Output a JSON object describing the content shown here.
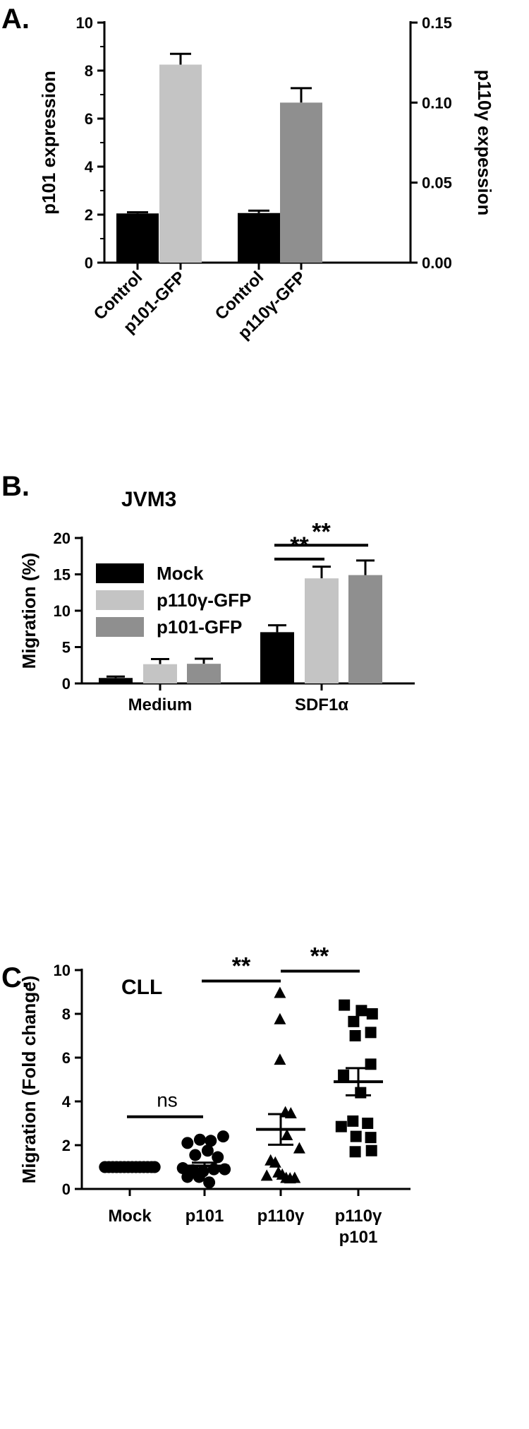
{
  "chart_data": [
    {
      "panel": "A.",
      "type": "bar",
      "categories": [
        "Control",
        "p101-GFP",
        "Control",
        "p110γ-GFP"
      ],
      "values": [
        2.05,
        8.25,
        0.031,
        0.1
      ],
      "errors": [
        0.05,
        0.45,
        0.0015,
        0.009
      ],
      "axis": [
        "left",
        "left",
        "right",
        "right"
      ],
      "colors": [
        "#000000",
        "#c4c4c4",
        "#000000",
        "#8f8f8f"
      ],
      "ylabel": "p101 expression",
      "y2label": "p110γ expession",
      "ylim": [
        0,
        10
      ],
      "y2lim": [
        0,
        0.15
      ],
      "yticks": [
        "0",
        "2",
        "4",
        "6",
        "8",
        "10"
      ],
      "y2ticks": [
        "0.00",
        "0.05",
        "0.10",
        "0.15"
      ]
    },
    {
      "panel": "B.",
      "type": "bar",
      "title": "JVM3",
      "categories": [
        "Medium",
        "SDF1α"
      ],
      "series": [
        {
          "name": "Mock",
          "values": [
            0.75,
            7.05
          ],
          "errors": [
            0.2,
            0.95
          ],
          "color": "#000000"
        },
        {
          "name": "p110γ-GFP",
          "values": [
            2.65,
            14.45
          ],
          "errors": [
            0.7,
            1.6
          ],
          "color": "#c4c4c4"
        },
        {
          "name": "p101-GFP",
          "values": [
            2.7,
            14.9
          ],
          "errors": [
            0.7,
            2.0
          ],
          "color": "#8f8f8f"
        }
      ],
      "ylabel": "Migration (%)",
      "ylim": [
        0,
        20
      ],
      "yticks": [
        "0",
        "5",
        "10",
        "15",
        "20"
      ],
      "annotations": [
        {
          "text": "**",
          "group": "SDF1α",
          "from": "Mock",
          "to": "p110γ-GFP",
          "y": 17.1
        },
        {
          "text": "**",
          "group": "SDF1α",
          "from": "Mock",
          "to": "p101-GFP",
          "y": 19.0
        }
      ]
    },
    {
      "panel": "C.",
      "type": "scatter",
      "title": "CLL",
      "categories": [
        "Mock",
        "p101",
        "p110γ",
        "p110γ\np101"
      ],
      "category_lines": [
        [
          "Mock"
        ],
        [
          "p101"
        ],
        [
          "p110γ"
        ],
        [
          "p110γ",
          "p101"
        ]
      ],
      "ylabel": "Migration (Fold change)",
      "ylim": [
        0,
        10
      ],
      "yticks": [
        "0",
        "2",
        "4",
        "6",
        "8",
        "10"
      ],
      "series": [
        {
          "group": "Mock",
          "marker": "circle",
          "mean": 1.0,
          "sem": 0.0,
          "points": [
            [
              -0.32,
              1
            ],
            [
              -0.27,
              1
            ],
            [
              -0.22,
              1
            ],
            [
              -0.17,
              1
            ],
            [
              -0.12,
              1
            ],
            [
              -0.07,
              1
            ],
            [
              -0.02,
              1
            ],
            [
              0.03,
              1
            ],
            [
              0.08,
              1
            ],
            [
              0.13,
              1
            ],
            [
              0.18,
              1
            ],
            [
              0.23,
              1
            ],
            [
              0.28,
              1
            ],
            [
              0.32,
              1
            ]
          ]
        },
        {
          "group": "p101",
          "marker": "circle",
          "mean": 1.05,
          "sem": 0.15,
          "points": [
            [
              -0.22,
              2.1
            ],
            [
              -0.06,
              2.25
            ],
            [
              0.08,
              2.2
            ],
            [
              0.24,
              2.4
            ],
            [
              -0.12,
              1.55
            ],
            [
              0.04,
              1.75
            ],
            [
              0.17,
              1.45
            ],
            [
              -0.28,
              0.95
            ],
            [
              -0.15,
              0.85
            ],
            [
              -0.02,
              0.8
            ],
            [
              0.12,
              0.9
            ],
            [
              0.26,
              0.9
            ],
            [
              -0.22,
              0.55
            ],
            [
              -0.07,
              0.55
            ],
            [
              0.06,
              0.3
            ]
          ]
        },
        {
          "group": "p110γ",
          "marker": "triangle",
          "mean": 2.72,
          "sem": 0.7,
          "points": [
            [
              -0.01,
              8.95
            ],
            [
              -0.01,
              7.75
            ],
            [
              -0.01,
              5.9
            ],
            [
              0.06,
              3.5
            ],
            [
              0.13,
              3.45
            ],
            [
              0.08,
              2.45
            ],
            [
              0.24,
              1.85
            ],
            [
              -0.13,
              1.3
            ],
            [
              -0.07,
              1.2
            ],
            [
              -0.03,
              0.75
            ],
            [
              0.02,
              0.65
            ],
            [
              0.07,
              0.5
            ],
            [
              0.12,
              0.48
            ],
            [
              0.18,
              0.5
            ],
            [
              -0.18,
              0.6
            ]
          ]
        },
        {
          "group": "p110γ\np101",
          "marker": "square",
          "mean": 4.9,
          "sem": 0.62,
          "points": [
            [
              -0.18,
              8.4
            ],
            [
              0.04,
              8.15
            ],
            [
              0.18,
              8.0
            ],
            [
              -0.06,
              7.65
            ],
            [
              0.16,
              7.15
            ],
            [
              -0.04,
              7.0
            ],
            [
              0.16,
              5.7
            ],
            [
              -0.19,
              5.2
            ],
            [
              0.03,
              4.4
            ],
            [
              -0.07,
              3.1
            ],
            [
              0.12,
              3.0
            ],
            [
              -0.22,
              2.85
            ],
            [
              -0.03,
              2.4
            ],
            [
              0.16,
              2.35
            ],
            [
              -0.04,
              1.7
            ],
            [
              0.17,
              1.75
            ]
          ]
        }
      ],
      "annotations": [
        {
          "text": "ns",
          "from": "Mock",
          "to": "p101",
          "y": 3.3
        },
        {
          "text": "**",
          "from": "p101",
          "to": "p110γ",
          "y": 9.5
        },
        {
          "text": "**",
          "from": "p110γ",
          "to": "p110γ\np101",
          "y": 9.95
        }
      ]
    }
  ]
}
